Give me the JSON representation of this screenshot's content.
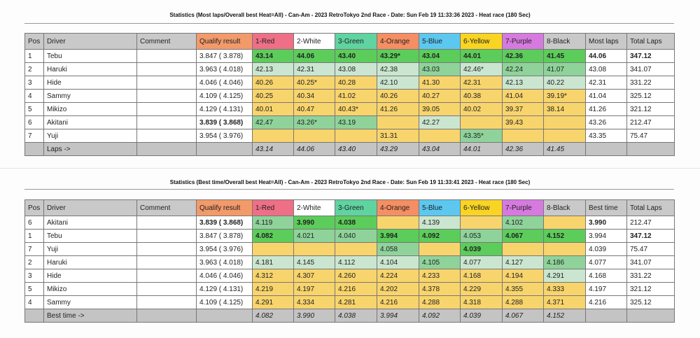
{
  "tables": [
    {
      "title": "Statistics (Most laps/Overall best Heat=All) - Can-Am - 2023 RetroTokyo 2nd Race - Date: Sun Feb 19 11:33:36 2023 - Heat race (180 Sec)",
      "headers": [
        "Pos",
        "Driver",
        "Comment",
        "Qualify result",
        "1-Red",
        "2-White",
        "3-Green",
        "4-Orange",
        "5-Blue",
        "6-Yellow",
        "7-Purple",
        "8-Black",
        "Most laps",
        "Total Laps"
      ],
      "header_colors": [
        "#c9c9c9",
        "#c9c9c9",
        "#c9c9c9",
        "#f39a6a",
        "#ee6f86",
        "#ffffff",
        "#5fd3a0",
        "#f58e62",
        "#5cc8f0",
        "#f9d423",
        "#d77ae0",
        "#c9c9c9",
        "#c9c9c9",
        "#c9c9c9"
      ],
      "rows": [
        {
          "pos": "1",
          "driver": "Tebu",
          "comment": "",
          "qualify": "3.847 ( 3.878)",
          "qb": false,
          "cells": [
            [
              "43.14",
              "g",
              1
            ],
            [
              "44.06",
              "g",
              1
            ],
            [
              "43.40",
              "g",
              1
            ],
            [
              "43.29*",
              "g",
              1
            ],
            [
              "43.04",
              "g",
              1
            ],
            [
              "44.01",
              "g",
              1
            ],
            [
              "42.36",
              "g",
              1
            ],
            [
              "41.45",
              "g",
              1
            ]
          ],
          "last": "44.06",
          "lb": true,
          "total": "347.12",
          "tb": true
        },
        {
          "pos": "2",
          "driver": "Haruki",
          "comment": "",
          "qualify": "3.963 ( 4.018)",
          "qb": false,
          "cells": [
            [
              "42.13",
              "l",
              0
            ],
            [
              "42.31",
              "l",
              0
            ],
            [
              "43.08",
              "l",
              0
            ],
            [
              "42.38",
              "l",
              0
            ],
            [
              "43.03",
              "m",
              0
            ],
            [
              "42.46*",
              "l",
              0
            ],
            [
              "42.24",
              "m",
              0
            ],
            [
              "41.07",
              "m",
              0
            ]
          ],
          "last": "43.08",
          "total": "341.07"
        },
        {
          "pos": "3",
          "driver": "Hide",
          "comment": "",
          "qualify": "4.046 ( 4.046)",
          "qb": false,
          "cells": [
            [
              "40.26",
              "y",
              0
            ],
            [
              "40.25*",
              "y",
              0
            ],
            [
              "40.28",
              "y",
              0
            ],
            [
              "42.10",
              "l",
              0
            ],
            [
              "41.30",
              "y",
              0
            ],
            [
              "42.31",
              "y",
              0
            ],
            [
              "42.13",
              "l",
              0
            ],
            [
              "40.22",
              "l",
              0
            ]
          ],
          "last": "42.31",
          "total": "331.22"
        },
        {
          "pos": "4",
          "driver": "Sammy",
          "comment": "",
          "qualify": "4.109 ( 4.125)",
          "qb": false,
          "cells": [
            [
              "40.25",
              "y",
              0
            ],
            [
              "40.34",
              "y",
              0
            ],
            [
              "41.02",
              "y",
              0
            ],
            [
              "40.26",
              "y",
              0
            ],
            [
              "40.27",
              "y",
              0
            ],
            [
              "40.38",
              "y",
              0
            ],
            [
              "41.04",
              "y",
              0
            ],
            [
              "39.19*",
              "y",
              0
            ]
          ],
          "last": "41.04",
          "total": "325.12"
        },
        {
          "pos": "5",
          "driver": "Mikizo",
          "comment": "",
          "qualify": "4.129 ( 4.131)",
          "qb": false,
          "cells": [
            [
              "40.01",
              "y",
              0
            ],
            [
              "40.47",
              "y",
              0
            ],
            [
              "40.43*",
              "y",
              0
            ],
            [
              "41.26",
              "y",
              0
            ],
            [
              "39.05",
              "y",
              0
            ],
            [
              "40.02",
              "y",
              0
            ],
            [
              "39.37",
              "y",
              0
            ],
            [
              "38.14",
              "y",
              0
            ]
          ],
          "last": "41.26",
          "total": "321.12"
        },
        {
          "pos": "6",
          "driver": "Akitani",
          "comment": "",
          "qualify": "3.839 ( 3.868)",
          "qb": true,
          "cells": [
            [
              "42.47",
              "m",
              0
            ],
            [
              "43.26*",
              "m",
              0
            ],
            [
              "43.19",
              "m",
              0
            ],
            [
              "",
              "y",
              0
            ],
            [
              "42.27",
              "l",
              0
            ],
            [
              "",
              "y",
              0
            ],
            [
              "39.43",
              "y",
              0
            ],
            [
              "",
              "y",
              0
            ]
          ],
          "last": "43.26",
          "total": "212.47"
        },
        {
          "pos": "7",
          "driver": "Yuji",
          "comment": "",
          "qualify": "3.954 ( 3.976)",
          "qb": false,
          "cells": [
            [
              "",
              "y",
              0
            ],
            [
              "",
              "y",
              0
            ],
            [
              "",
              "y",
              0
            ],
            [
              "31.31",
              "y",
              0
            ],
            [
              "",
              "y",
              0
            ],
            [
              "43.35*",
              "m",
              0
            ],
            [
              "",
              "y",
              0
            ],
            [
              "",
              "y",
              0
            ]
          ],
          "last": "43.35",
          "total": "75.47"
        }
      ],
      "footer_label": "Laps ->",
      "footer": [
        "43.14",
        "44.06",
        "43.40",
        "43.29",
        "43.04",
        "44.01",
        "42.36",
        "41.45"
      ]
    },
    {
      "title": "Statistics (Best time/Overall best Heat=All) - Can-Am - 2023 RetroTokyo 2nd Race - Date: Sun Feb 19 11:33:41 2023 - Heat race (180 Sec)",
      "headers": [
        "Pos",
        "Driver",
        "Comment",
        "Qualify result",
        "1-Red",
        "2-White",
        "3-Green",
        "4-Orange",
        "5-Blue",
        "6-Yellow",
        "7-Purple",
        "8-Black",
        "Best time",
        "Total Laps"
      ],
      "header_colors": [
        "#c9c9c9",
        "#c9c9c9",
        "#c9c9c9",
        "#f39a6a",
        "#ee6f86",
        "#ffffff",
        "#5fd3a0",
        "#f58e62",
        "#5cc8f0",
        "#f9d423",
        "#d77ae0",
        "#c9c9c9",
        "#c9c9c9",
        "#c9c9c9"
      ],
      "rows": [
        {
          "pos": "6",
          "driver": "Akitani",
          "comment": "",
          "qualify": "3.839 ( 3.868)",
          "qb": true,
          "cells": [
            [
              "4.119",
              "m",
              0
            ],
            [
              "3.990",
              "g",
              1
            ],
            [
              "4.038",
              "g",
              1
            ],
            [
              "",
              "y",
              0
            ],
            [
              "4.139",
              "l",
              0
            ],
            [
              "",
              "y",
              0
            ],
            [
              "4.102",
              "m",
              0
            ],
            [
              "",
              "y",
              0
            ]
          ],
          "last": "3.990",
          "lb": true,
          "total": "212.47"
        },
        {
          "pos": "1",
          "driver": "Tebu",
          "comment": "",
          "qualify": "3.847 ( 3.878)",
          "qb": false,
          "cells": [
            [
              "4.082",
              "g",
              1
            ],
            [
              "4.021",
              "m",
              0
            ],
            [
              "4.040",
              "m",
              0
            ],
            [
              "3.994",
              "g",
              1
            ],
            [
              "4.092",
              "g",
              1
            ],
            [
              "4.053",
              "m",
              0
            ],
            [
              "4.067",
              "g",
              1
            ],
            [
              "4.152",
              "g",
              1
            ]
          ],
          "last": "3.994",
          "total": "347.12",
          "tb": true
        },
        {
          "pos": "7",
          "driver": "Yuji",
          "comment": "",
          "qualify": "3.954 ( 3.976)",
          "qb": false,
          "cells": [
            [
              "",
              "y",
              0
            ],
            [
              "",
              "y",
              0
            ],
            [
              "",
              "y",
              0
            ],
            [
              "4.058",
              "m",
              0
            ],
            [
              "",
              "y",
              0
            ],
            [
              "4.039",
              "g",
              1
            ],
            [
              "",
              "y",
              0
            ],
            [
              "",
              "y",
              0
            ]
          ],
          "last": "4.039",
          "total": "75.47"
        },
        {
          "pos": "2",
          "driver": "Haruki",
          "comment": "",
          "qualify": "3.963 ( 4.018)",
          "qb": false,
          "cells": [
            [
              "4.181",
              "l",
              0
            ],
            [
              "4.145",
              "l",
              0
            ],
            [
              "4.112",
              "l",
              0
            ],
            [
              "4.104",
              "l",
              0
            ],
            [
              "4.105",
              "m",
              0
            ],
            [
              "4.077",
              "l",
              0
            ],
            [
              "4.127",
              "l",
              0
            ],
            [
              "4.186",
              "m",
              0
            ]
          ],
          "last": "4.077",
          "total": "341.07"
        },
        {
          "pos": "3",
          "driver": "Hide",
          "comment": "",
          "qualify": "4.046 ( 4.046)",
          "qb": false,
          "cells": [
            [
              "4.312",
              "y",
              0
            ],
            [
              "4.307",
              "y",
              0
            ],
            [
              "4.260",
              "y",
              0
            ],
            [
              "4.224",
              "y",
              0
            ],
            [
              "4.233",
              "y",
              0
            ],
            [
              "4.168",
              "y",
              0
            ],
            [
              "4.194",
              "y",
              0
            ],
            [
              "4.291",
              "l",
              0
            ]
          ],
          "last": "4.168",
          "total": "331.22"
        },
        {
          "pos": "5",
          "driver": "Mikizo",
          "comment": "",
          "qualify": "4.129 ( 4.131)",
          "qb": false,
          "cells": [
            [
              "4.219",
              "y",
              0
            ],
            [
              "4.197",
              "y",
              0
            ],
            [
              "4.216",
              "y",
              0
            ],
            [
              "4.202",
              "y",
              0
            ],
            [
              "4.378",
              "y",
              0
            ],
            [
              "4.229",
              "y",
              0
            ],
            [
              "4.355",
              "y",
              0
            ],
            [
              "4.333",
              "y",
              0
            ]
          ],
          "last": "4.197",
          "total": "321.12"
        },
        {
          "pos": "4",
          "driver": "Sammy",
          "comment": "",
          "qualify": "4.109 ( 4.125)",
          "qb": false,
          "cells": [
            [
              "4.291",
              "y",
              0
            ],
            [
              "4.334",
              "y",
              0
            ],
            [
              "4.281",
              "y",
              0
            ],
            [
              "4.216",
              "y",
              0
            ],
            [
              "4.288",
              "y",
              0
            ],
            [
              "4.318",
              "y",
              0
            ],
            [
              "4.288",
              "y",
              0
            ],
            [
              "4.371",
              "y",
              0
            ]
          ],
          "last": "4.216",
          "total": "325.12"
        }
      ],
      "footer_label": "Best time ->",
      "footer": [
        "4.082",
        "3.990",
        "4.038",
        "3.994",
        "4.092",
        "4.039",
        "4.067",
        "4.152"
      ]
    }
  ]
}
